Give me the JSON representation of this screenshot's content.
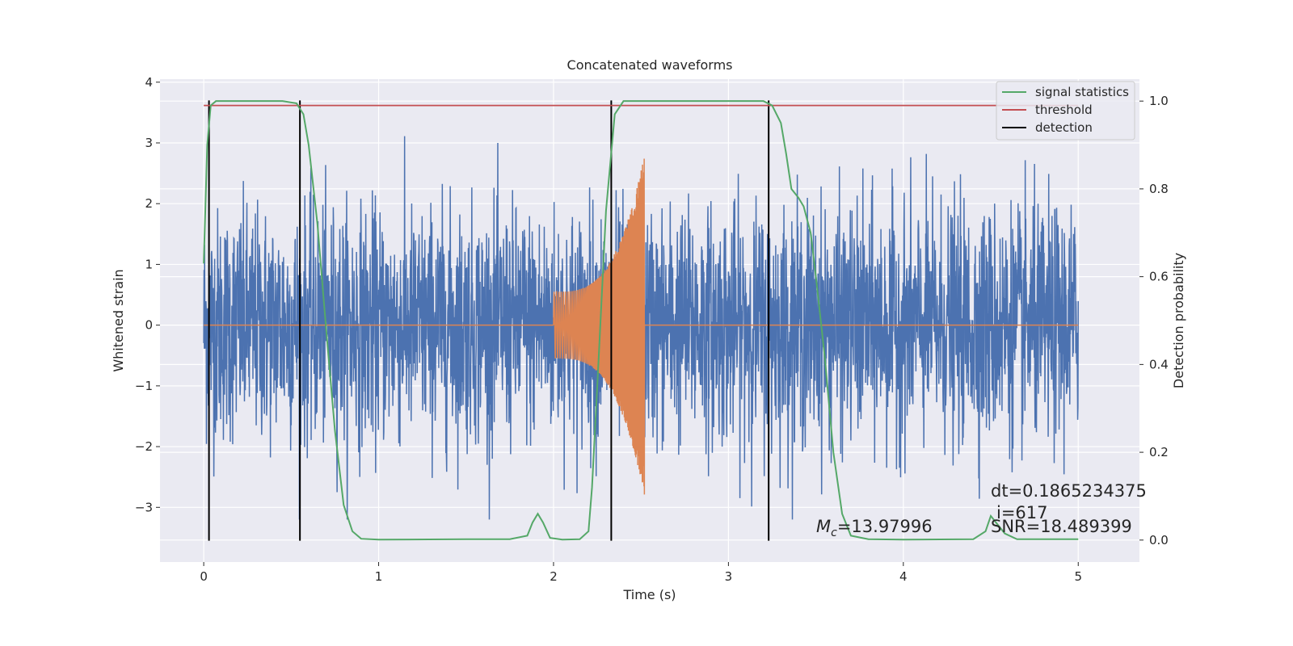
{
  "chart_data": {
    "type": "line",
    "title": "Concatenated waveforms",
    "xlabel": "Time (s)",
    "ylabel": "Whitened strain",
    "y2label": "Detection probability",
    "xlim": [
      -0.25,
      5.35
    ],
    "ylim": [
      -3.9,
      4.05
    ],
    "y2lim": [
      -0.05,
      1.05
    ],
    "xticks": [
      0,
      1,
      2,
      3,
      4,
      5
    ],
    "xtick_labels": [
      "0",
      "1",
      "2",
      "3",
      "4",
      "5"
    ],
    "yticks": [
      -3,
      -2,
      -1,
      0,
      1,
      2,
      3,
      4
    ],
    "ytick_labels": [
      "−3",
      "−2",
      "−1",
      "0",
      "1",
      "2",
      "3",
      "4"
    ],
    "y2ticks": [
      0.0,
      0.2,
      0.4,
      0.6,
      0.8,
      1.0
    ],
    "y2tick_labels": [
      "0.0",
      "0.2",
      "0.4",
      "0.6",
      "0.8",
      "1.0"
    ],
    "grid": true,
    "legend_position": "top-right",
    "colors": {
      "strain": "#4c72b0",
      "injection": "#dd8452",
      "signal_statistics": "#55a868",
      "threshold": "#c44e52",
      "detection": "#000000",
      "background": "#eaeaf2",
      "grid": "#ffffff"
    },
    "series": [
      {
        "name": "signal statistics",
        "axis": "right",
        "x": [
          0.0,
          0.02,
          0.04,
          0.07,
          0.12,
          0.2,
          0.3,
          0.45,
          0.53,
          0.57,
          0.6,
          0.65,
          0.7,
          0.75,
          0.8,
          0.85,
          0.9,
          1.0,
          1.5,
          1.75,
          1.85,
          1.88,
          1.91,
          1.94,
          1.98,
          2.05,
          2.15,
          2.2,
          2.22,
          2.25,
          2.3,
          2.35,
          2.4,
          2.5,
          3.0,
          3.2,
          3.25,
          3.3,
          3.33,
          3.36,
          3.4,
          3.43,
          3.47,
          3.5,
          3.55,
          3.6,
          3.65,
          3.7,
          3.8,
          4.0,
          4.4,
          4.47,
          4.5,
          4.53,
          4.58,
          4.65,
          5.0
        ],
        "y": [
          0.63,
          0.9,
          0.99,
          1.0,
          1.0,
          1.0,
          1.0,
          1.0,
          0.995,
          0.97,
          0.9,
          0.72,
          0.48,
          0.25,
          0.08,
          0.02,
          0.003,
          0.001,
          0.002,
          0.002,
          0.01,
          0.04,
          0.06,
          0.04,
          0.005,
          0.001,
          0.002,
          0.02,
          0.12,
          0.35,
          0.75,
          0.97,
          1.0,
          1.0,
          1.0,
          1.0,
          0.99,
          0.95,
          0.88,
          0.8,
          0.78,
          0.76,
          0.7,
          0.6,
          0.42,
          0.2,
          0.06,
          0.01,
          0.002,
          0.001,
          0.002,
          0.02,
          0.055,
          0.04,
          0.015,
          0.002,
          0.002
        ]
      },
      {
        "name": "threshold",
        "axis": "right",
        "x": [
          0.0,
          5.0
        ],
        "y": [
          0.99,
          0.99
        ]
      },
      {
        "name": "detection",
        "axis": "left",
        "x_positions": [
          0.03,
          0.55,
          2.33,
          3.23
        ],
        "y_range": [
          -3.55,
          3.7
        ]
      },
      {
        "name": "whitened strain",
        "axis": "left",
        "x_range": [
          0.0,
          5.0
        ],
        "envelope": [
          -3.2,
          3.7
        ],
        "in_legend": false
      },
      {
        "name": "injected waveform",
        "axis": "left",
        "x_start": 2.0,
        "x_end": 2.52,
        "peak_amplitude": 2.8,
        "in_legend": false
      }
    ],
    "legend": [
      "signal statistics",
      "threshold",
      "detection"
    ],
    "annotations": {
      "mc_symbol": "M",
      "mc_subscript": "c",
      "mc_value": "=13.97996",
      "dt": "dt=0.1865234375",
      "i": "i=617",
      "snr": "SNR=18.489399"
    }
  }
}
